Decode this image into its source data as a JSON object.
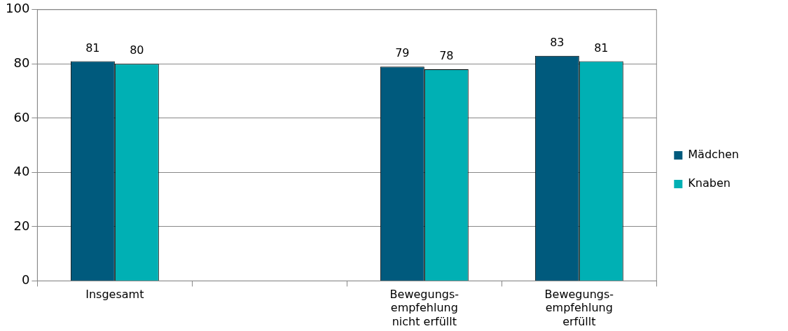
{
  "chart_data": {
    "type": "bar",
    "categories": [
      "Insgesamt",
      null,
      "Bewegungs-empfehlung nicht erfüllt",
      "Bewegungs-empfehlung erfüllt"
    ],
    "series": [
      {
        "name": "Mädchen",
        "color": "#005a7d",
        "values": [
          81,
          null,
          79,
          83
        ]
      },
      {
        "name": "Knaben",
        "color": "#00b0b4",
        "values": [
          80,
          null,
          78,
          81
        ]
      }
    ],
    "ylim": [
      0,
      100
    ],
    "yticks": [
      0,
      20,
      40,
      60,
      80,
      100
    ],
    "grid": "y",
    "legend": "right",
    "data_labels": true
  }
}
